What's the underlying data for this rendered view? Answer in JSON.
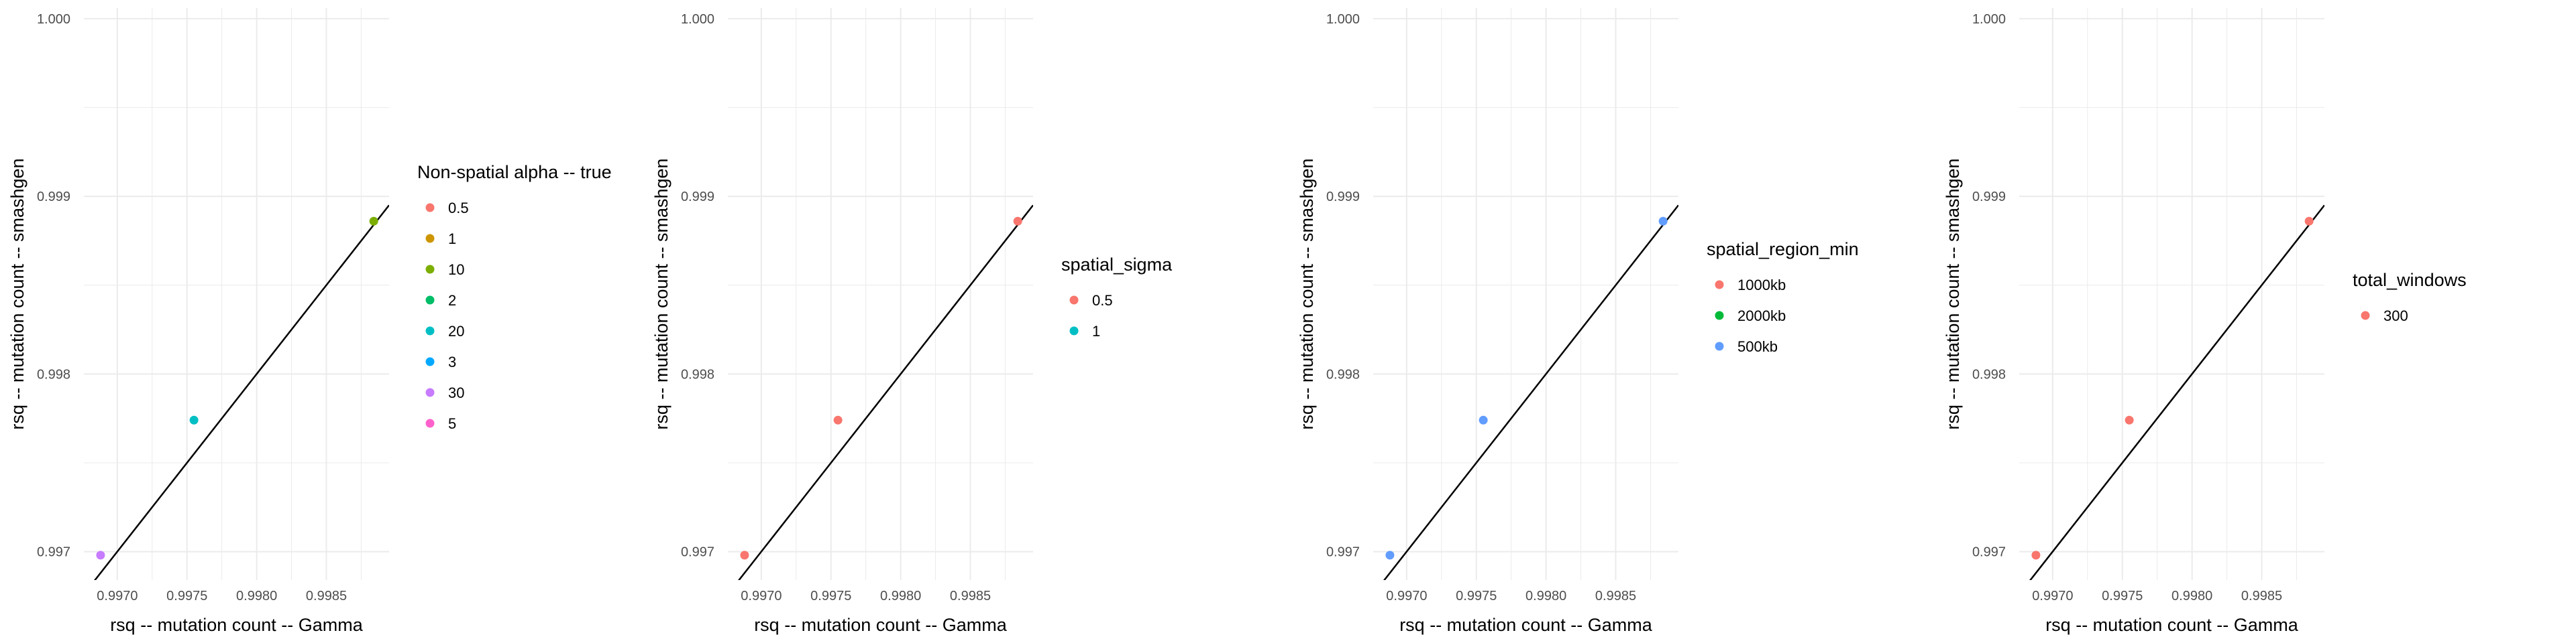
{
  "chart_data": [
    {
      "type": "scatter",
      "xlabel": "rsq -- mutation count -- Gamma",
      "ylabel": "rsq -- mutation count -- smashgen",
      "xlim": [
        0.99676,
        0.99895
      ],
      "ylim": [
        0.99684,
        1.00006
      ],
      "x_ticks": [
        "0.9970",
        "0.9975",
        "0.9980",
        "0.9985"
      ],
      "y_ticks": [
        "0.997",
        "0.998",
        "0.999",
        "1.000"
      ],
      "grid": true,
      "legend_placement": "right",
      "reference_line": "y = x",
      "legend_title": "Non-spatial alpha -- true",
      "legend": [
        {
          "label": "0.5",
          "color": "#F8766D"
        },
        {
          "label": "1",
          "color": "#CD9600"
        },
        {
          "label": "10",
          "color": "#7CAE00"
        },
        {
          "label": "2",
          "color": "#00BE67"
        },
        {
          "label": "20",
          "color": "#00BFC4"
        },
        {
          "label": "3",
          "color": "#00A9FF"
        },
        {
          "label": "30",
          "color": "#C77CFF"
        },
        {
          "label": "5",
          "color": "#FF61CC"
        }
      ],
      "points": [
        {
          "x": 0.99688,
          "y": 0.99698,
          "color": "#C77CFF"
        },
        {
          "x": 0.99755,
          "y": 0.99774,
          "color": "#00BFC4"
        },
        {
          "x": 0.99884,
          "y": 0.99886,
          "color": "#7CAE00"
        }
      ]
    },
    {
      "type": "scatter",
      "xlabel": "rsq -- mutation count -- Gamma",
      "ylabel": "rsq -- mutation count -- smashgen",
      "xlim": [
        0.99676,
        0.99895
      ],
      "ylim": [
        0.99684,
        1.00006
      ],
      "x_ticks": [
        "0.9970",
        "0.9975",
        "0.9980",
        "0.9985"
      ],
      "y_ticks": [
        "0.997",
        "0.998",
        "0.999",
        "1.000"
      ],
      "grid": true,
      "legend_placement": "right",
      "reference_line": "y = x",
      "legend_title": "spatial_sigma",
      "legend": [
        {
          "label": "0.5",
          "color": "#F8766D"
        },
        {
          "label": "1",
          "color": "#00BFC4"
        }
      ],
      "points": [
        {
          "x": 0.99688,
          "y": 0.99698,
          "color": "#F8766D"
        },
        {
          "x": 0.99755,
          "y": 0.99774,
          "color": "#F8766D"
        },
        {
          "x": 0.99884,
          "y": 0.99886,
          "color": "#F8766D"
        }
      ]
    },
    {
      "type": "scatter",
      "xlabel": "rsq -- mutation count -- Gamma",
      "ylabel": "rsq -- mutation count -- smashgen",
      "xlim": [
        0.99676,
        0.99895
      ],
      "ylim": [
        0.99684,
        1.00006
      ],
      "x_ticks": [
        "0.9970",
        "0.9975",
        "0.9980",
        "0.9985"
      ],
      "y_ticks": [
        "0.997",
        "0.998",
        "0.999",
        "1.000"
      ],
      "grid": true,
      "legend_placement": "right",
      "reference_line": "y = x",
      "legend_title": "spatial_region_min",
      "legend": [
        {
          "label": "1000kb",
          "color": "#F8766D"
        },
        {
          "label": "2000kb",
          "color": "#00BA38"
        },
        {
          "label": "500kb",
          "color": "#619CFF"
        }
      ],
      "points": [
        {
          "x": 0.99688,
          "y": 0.99698,
          "color": "#619CFF"
        },
        {
          "x": 0.99755,
          "y": 0.99774,
          "color": "#619CFF"
        },
        {
          "x": 0.99884,
          "y": 0.99886,
          "color": "#619CFF"
        }
      ]
    },
    {
      "type": "scatter",
      "xlabel": "rsq -- mutation count -- Gamma",
      "ylabel": "rsq -- mutation count -- smashgen",
      "xlim": [
        0.99676,
        0.99895
      ],
      "ylim": [
        0.99684,
        1.00006
      ],
      "x_ticks": [
        "0.9970",
        "0.9975",
        "0.9980",
        "0.9985"
      ],
      "y_ticks": [
        "0.997",
        "0.998",
        "0.999",
        "1.000"
      ],
      "grid": true,
      "legend_placement": "right",
      "reference_line": "y = x",
      "legend_title": "total_windows",
      "legend": [
        {
          "label": "300",
          "color": "#F8766D"
        }
      ],
      "points": [
        {
          "x": 0.99688,
          "y": 0.99698,
          "color": "#F8766D"
        },
        {
          "x": 0.99755,
          "y": 0.99774,
          "color": "#F8766D"
        },
        {
          "x": 0.99884,
          "y": 0.99886,
          "color": "#F8766D"
        }
      ]
    }
  ]
}
